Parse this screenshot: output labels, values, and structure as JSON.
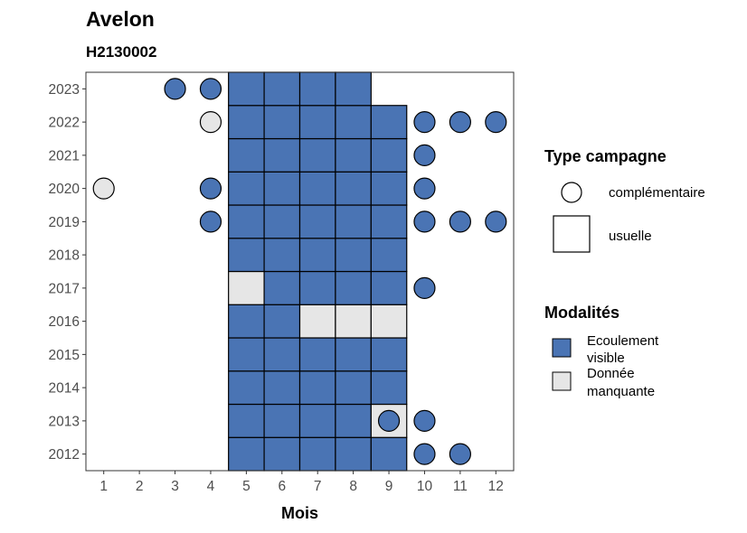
{
  "chart_data": {
    "type": "heatmap",
    "title": "Avelon",
    "subtitle": "H2130002",
    "xlabel": "Mois",
    "ylabel": "",
    "x_ticks": [
      "1",
      "2",
      "3",
      "4",
      "5",
      "6",
      "7",
      "8",
      "9",
      "10",
      "11",
      "12"
    ],
    "y_ticks": [
      "2012",
      "2013",
      "2014",
      "2015",
      "2016",
      "2017",
      "2018",
      "2019",
      "2020",
      "2021",
      "2022",
      "2023"
    ],
    "colors": {
      "ecoulement_visible": "#4a74b4",
      "donnee_manquante": "#e6e6e6"
    },
    "legend_shape": {
      "title": "Type campagne",
      "items": [
        {
          "shape": "circle",
          "label": "complémentaire"
        },
        {
          "shape": "square",
          "label": "usuelle"
        }
      ]
    },
    "legend_fill": {
      "title": "Modalités",
      "items": [
        {
          "key": "ecoulement_visible",
          "label_lines": [
            "Ecoulement",
            "visible"
          ]
        },
        {
          "key": "donnee_manquante",
          "label_lines": [
            "Donnée",
            "manquante"
          ]
        }
      ]
    },
    "usuelle": [
      {
        "year": 2012,
        "month": 5,
        "m": "ecoulement_visible"
      },
      {
        "year": 2012,
        "month": 6,
        "m": "ecoulement_visible"
      },
      {
        "year": 2012,
        "month": 7,
        "m": "ecoulement_visible"
      },
      {
        "year": 2012,
        "month": 8,
        "m": "ecoulement_visible"
      },
      {
        "year": 2012,
        "month": 9,
        "m": "ecoulement_visible"
      },
      {
        "year": 2013,
        "month": 5,
        "m": "ecoulement_visible"
      },
      {
        "year": 2013,
        "month": 6,
        "m": "ecoulement_visible"
      },
      {
        "year": 2013,
        "month": 7,
        "m": "ecoulement_visible"
      },
      {
        "year": 2013,
        "month": 8,
        "m": "ecoulement_visible"
      },
      {
        "year": 2013,
        "month": 9,
        "m": "donnee_manquante"
      },
      {
        "year": 2014,
        "month": 5,
        "m": "ecoulement_visible"
      },
      {
        "year": 2014,
        "month": 6,
        "m": "ecoulement_visible"
      },
      {
        "year": 2014,
        "month": 7,
        "m": "ecoulement_visible"
      },
      {
        "year": 2014,
        "month": 8,
        "m": "ecoulement_visible"
      },
      {
        "year": 2014,
        "month": 9,
        "m": "ecoulement_visible"
      },
      {
        "year": 2015,
        "month": 5,
        "m": "ecoulement_visible"
      },
      {
        "year": 2015,
        "month": 6,
        "m": "ecoulement_visible"
      },
      {
        "year": 2015,
        "month": 7,
        "m": "ecoulement_visible"
      },
      {
        "year": 2015,
        "month": 8,
        "m": "ecoulement_visible"
      },
      {
        "year": 2015,
        "month": 9,
        "m": "ecoulement_visible"
      },
      {
        "year": 2016,
        "month": 5,
        "m": "ecoulement_visible"
      },
      {
        "year": 2016,
        "month": 6,
        "m": "ecoulement_visible"
      },
      {
        "year": 2016,
        "month": 7,
        "m": "donnee_manquante"
      },
      {
        "year": 2016,
        "month": 8,
        "m": "donnee_manquante"
      },
      {
        "year": 2016,
        "month": 9,
        "m": "donnee_manquante"
      },
      {
        "year": 2017,
        "month": 5,
        "m": "donnee_manquante"
      },
      {
        "year": 2017,
        "month": 6,
        "m": "ecoulement_visible"
      },
      {
        "year": 2017,
        "month": 7,
        "m": "ecoulement_visible"
      },
      {
        "year": 2017,
        "month": 8,
        "m": "ecoulement_visible"
      },
      {
        "year": 2017,
        "month": 9,
        "m": "ecoulement_visible"
      },
      {
        "year": 2018,
        "month": 5,
        "m": "ecoulement_visible"
      },
      {
        "year": 2018,
        "month": 6,
        "m": "ecoulement_visible"
      },
      {
        "year": 2018,
        "month": 7,
        "m": "ecoulement_visible"
      },
      {
        "year": 2018,
        "month": 8,
        "m": "ecoulement_visible"
      },
      {
        "year": 2018,
        "month": 9,
        "m": "ecoulement_visible"
      },
      {
        "year": 2019,
        "month": 5,
        "m": "ecoulement_visible"
      },
      {
        "year": 2019,
        "month": 6,
        "m": "ecoulement_visible"
      },
      {
        "year": 2019,
        "month": 7,
        "m": "ecoulement_visible"
      },
      {
        "year": 2019,
        "month": 8,
        "m": "ecoulement_visible"
      },
      {
        "year": 2019,
        "month": 9,
        "m": "ecoulement_visible"
      },
      {
        "year": 2020,
        "month": 5,
        "m": "ecoulement_visible"
      },
      {
        "year": 2020,
        "month": 6,
        "m": "ecoulement_visible"
      },
      {
        "year": 2020,
        "month": 7,
        "m": "ecoulement_visible"
      },
      {
        "year": 2020,
        "month": 8,
        "m": "ecoulement_visible"
      },
      {
        "year": 2020,
        "month": 9,
        "m": "ecoulement_visible"
      },
      {
        "year": 2021,
        "month": 5,
        "m": "ecoulement_visible"
      },
      {
        "year": 2021,
        "month": 6,
        "m": "ecoulement_visible"
      },
      {
        "year": 2021,
        "month": 7,
        "m": "ecoulement_visible"
      },
      {
        "year": 2021,
        "month": 8,
        "m": "ecoulement_visible"
      },
      {
        "year": 2021,
        "month": 9,
        "m": "ecoulement_visible"
      },
      {
        "year": 2022,
        "month": 5,
        "m": "ecoulement_visible"
      },
      {
        "year": 2022,
        "month": 6,
        "m": "ecoulement_visible"
      },
      {
        "year": 2022,
        "month": 7,
        "m": "ecoulement_visible"
      },
      {
        "year": 2022,
        "month": 8,
        "m": "ecoulement_visible"
      },
      {
        "year": 2022,
        "month": 9,
        "m": "ecoulement_visible"
      },
      {
        "year": 2023,
        "month": 5,
        "m": "ecoulement_visible"
      },
      {
        "year": 2023,
        "month": 6,
        "m": "ecoulement_visible"
      },
      {
        "year": 2023,
        "month": 7,
        "m": "ecoulement_visible"
      },
      {
        "year": 2023,
        "month": 8,
        "m": "ecoulement_visible"
      }
    ],
    "complementaire": [
      {
        "year": 2023,
        "month": 3,
        "m": "ecoulement_visible"
      },
      {
        "year": 2023,
        "month": 4,
        "m": "ecoulement_visible"
      },
      {
        "year": 2022,
        "month": 4,
        "m": "donnee_manquante"
      },
      {
        "year": 2022,
        "month": 10,
        "m": "ecoulement_visible"
      },
      {
        "year": 2022,
        "month": 11,
        "m": "ecoulement_visible"
      },
      {
        "year": 2022,
        "month": 12,
        "m": "ecoulement_visible"
      },
      {
        "year": 2021,
        "month": 10,
        "m": "ecoulement_visible"
      },
      {
        "year": 2020,
        "month": 1,
        "m": "donnee_manquante"
      },
      {
        "year": 2020,
        "month": 4,
        "m": "ecoulement_visible"
      },
      {
        "year": 2020,
        "month": 10,
        "m": "ecoulement_visible"
      },
      {
        "year": 2019,
        "month": 4,
        "m": "ecoulement_visible"
      },
      {
        "year": 2019,
        "month": 10,
        "m": "ecoulement_visible"
      },
      {
        "year": 2019,
        "month": 11,
        "m": "ecoulement_visible"
      },
      {
        "year": 2019,
        "month": 12,
        "m": "ecoulement_visible"
      },
      {
        "year": 2017,
        "month": 10,
        "m": "ecoulement_visible"
      },
      {
        "year": 2013,
        "month": 9,
        "m": "ecoulement_visible"
      },
      {
        "year": 2013,
        "month": 10,
        "m": "ecoulement_visible"
      },
      {
        "year": 2012,
        "month": 10,
        "m": "ecoulement_visible"
      },
      {
        "year": 2012,
        "month": 11,
        "m": "ecoulement_visible"
      }
    ]
  }
}
